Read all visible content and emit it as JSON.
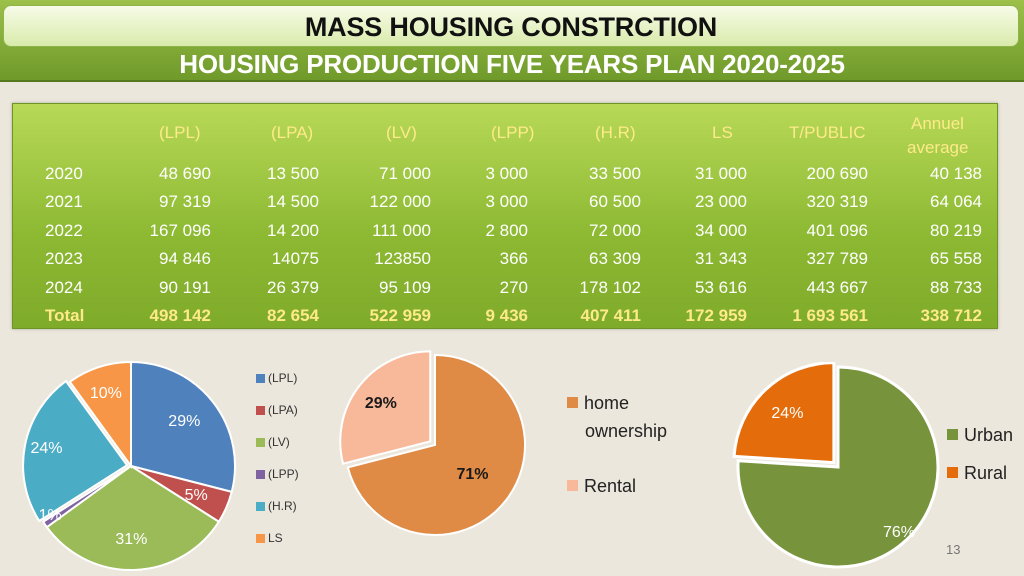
{
  "header": {
    "title": "MASS HOUSING CONSTRCTION",
    "subtitle": "HOUSING PRODUCTION FIVE YEARS PLAN 2020-2025"
  },
  "table": {
    "columns": [
      "",
      "(LPL)",
      "(LPA)",
      "(LV)",
      "(LPP)",
      "(H.R)",
      "LS",
      "T/PUBLIC",
      "Annuel average"
    ],
    "annual_line1": "Annuel",
    "annual_line2": "average",
    "rows": [
      [
        "2020",
        "48 690",
        "13 500",
        "71 000",
        "3 000",
        "33 500",
        "31 000",
        "200 690",
        "40 138"
      ],
      [
        "2021",
        "97 319",
        "14 500",
        "122 000",
        "3 000",
        "60 500",
        "23 000",
        "320 319",
        "64 064"
      ],
      [
        "2022",
        "167 096",
        "14 200",
        "111 000",
        "2 800",
        "72 000",
        "34 000",
        "401 096",
        "80 219"
      ],
      [
        "2023",
        "94 846",
        "14075",
        "123850",
        "366",
        "63 309",
        "31 343",
        "327 789",
        "65 558"
      ],
      [
        "2024",
        "90 191",
        "26 379",
        "95 109",
        "270",
        "178 102",
        "53 616",
        "443 667",
        "88 733"
      ],
      [
        "Total",
        "498 142",
        "82 654",
        "522 959",
        "9 436",
        "407 411",
        "172 959",
        "1 693 561",
        "338 712"
      ]
    ]
  },
  "chart_data": [
    {
      "type": "pie",
      "series": [
        {
          "values": [
            29,
            5,
            31,
            1,
            24,
            10
          ]
        }
      ],
      "categories": [
        "(LPL)",
        "(LPA)",
        "(LV)",
        "(LPP)",
        "(H.R)",
        "LS"
      ],
      "data_labels": [
        "29%",
        "5%",
        "31%",
        "1%",
        "24%",
        "10%"
      ],
      "colors": [
        "#4f81bd",
        "#c0504d",
        "#9bbb59",
        "#8064a2",
        "#4bacc6",
        "#f79646"
      ],
      "legend": "right"
    },
    {
      "type": "pie",
      "series": [
        {
          "values": [
            71,
            29
          ]
        }
      ],
      "categories": [
        "home ownership",
        "Rental"
      ],
      "data_labels": [
        "71%",
        "29%"
      ],
      "colors": [
        "#df8a45",
        "#f7b99a"
      ],
      "legend": "right"
    },
    {
      "type": "pie",
      "series": [
        {
          "values": [
            76,
            24
          ]
        }
      ],
      "categories": [
        "Urban",
        "Rural"
      ],
      "data_labels": [
        "76%",
        "24%"
      ],
      "colors": [
        "#77933c",
        "#e46c0a"
      ],
      "legend": "right"
    }
  ],
  "legend2": {
    "item1_line1": "home",
    "item1_line2": "ownership",
    "item2": "Rental"
  },
  "page_number": "13"
}
